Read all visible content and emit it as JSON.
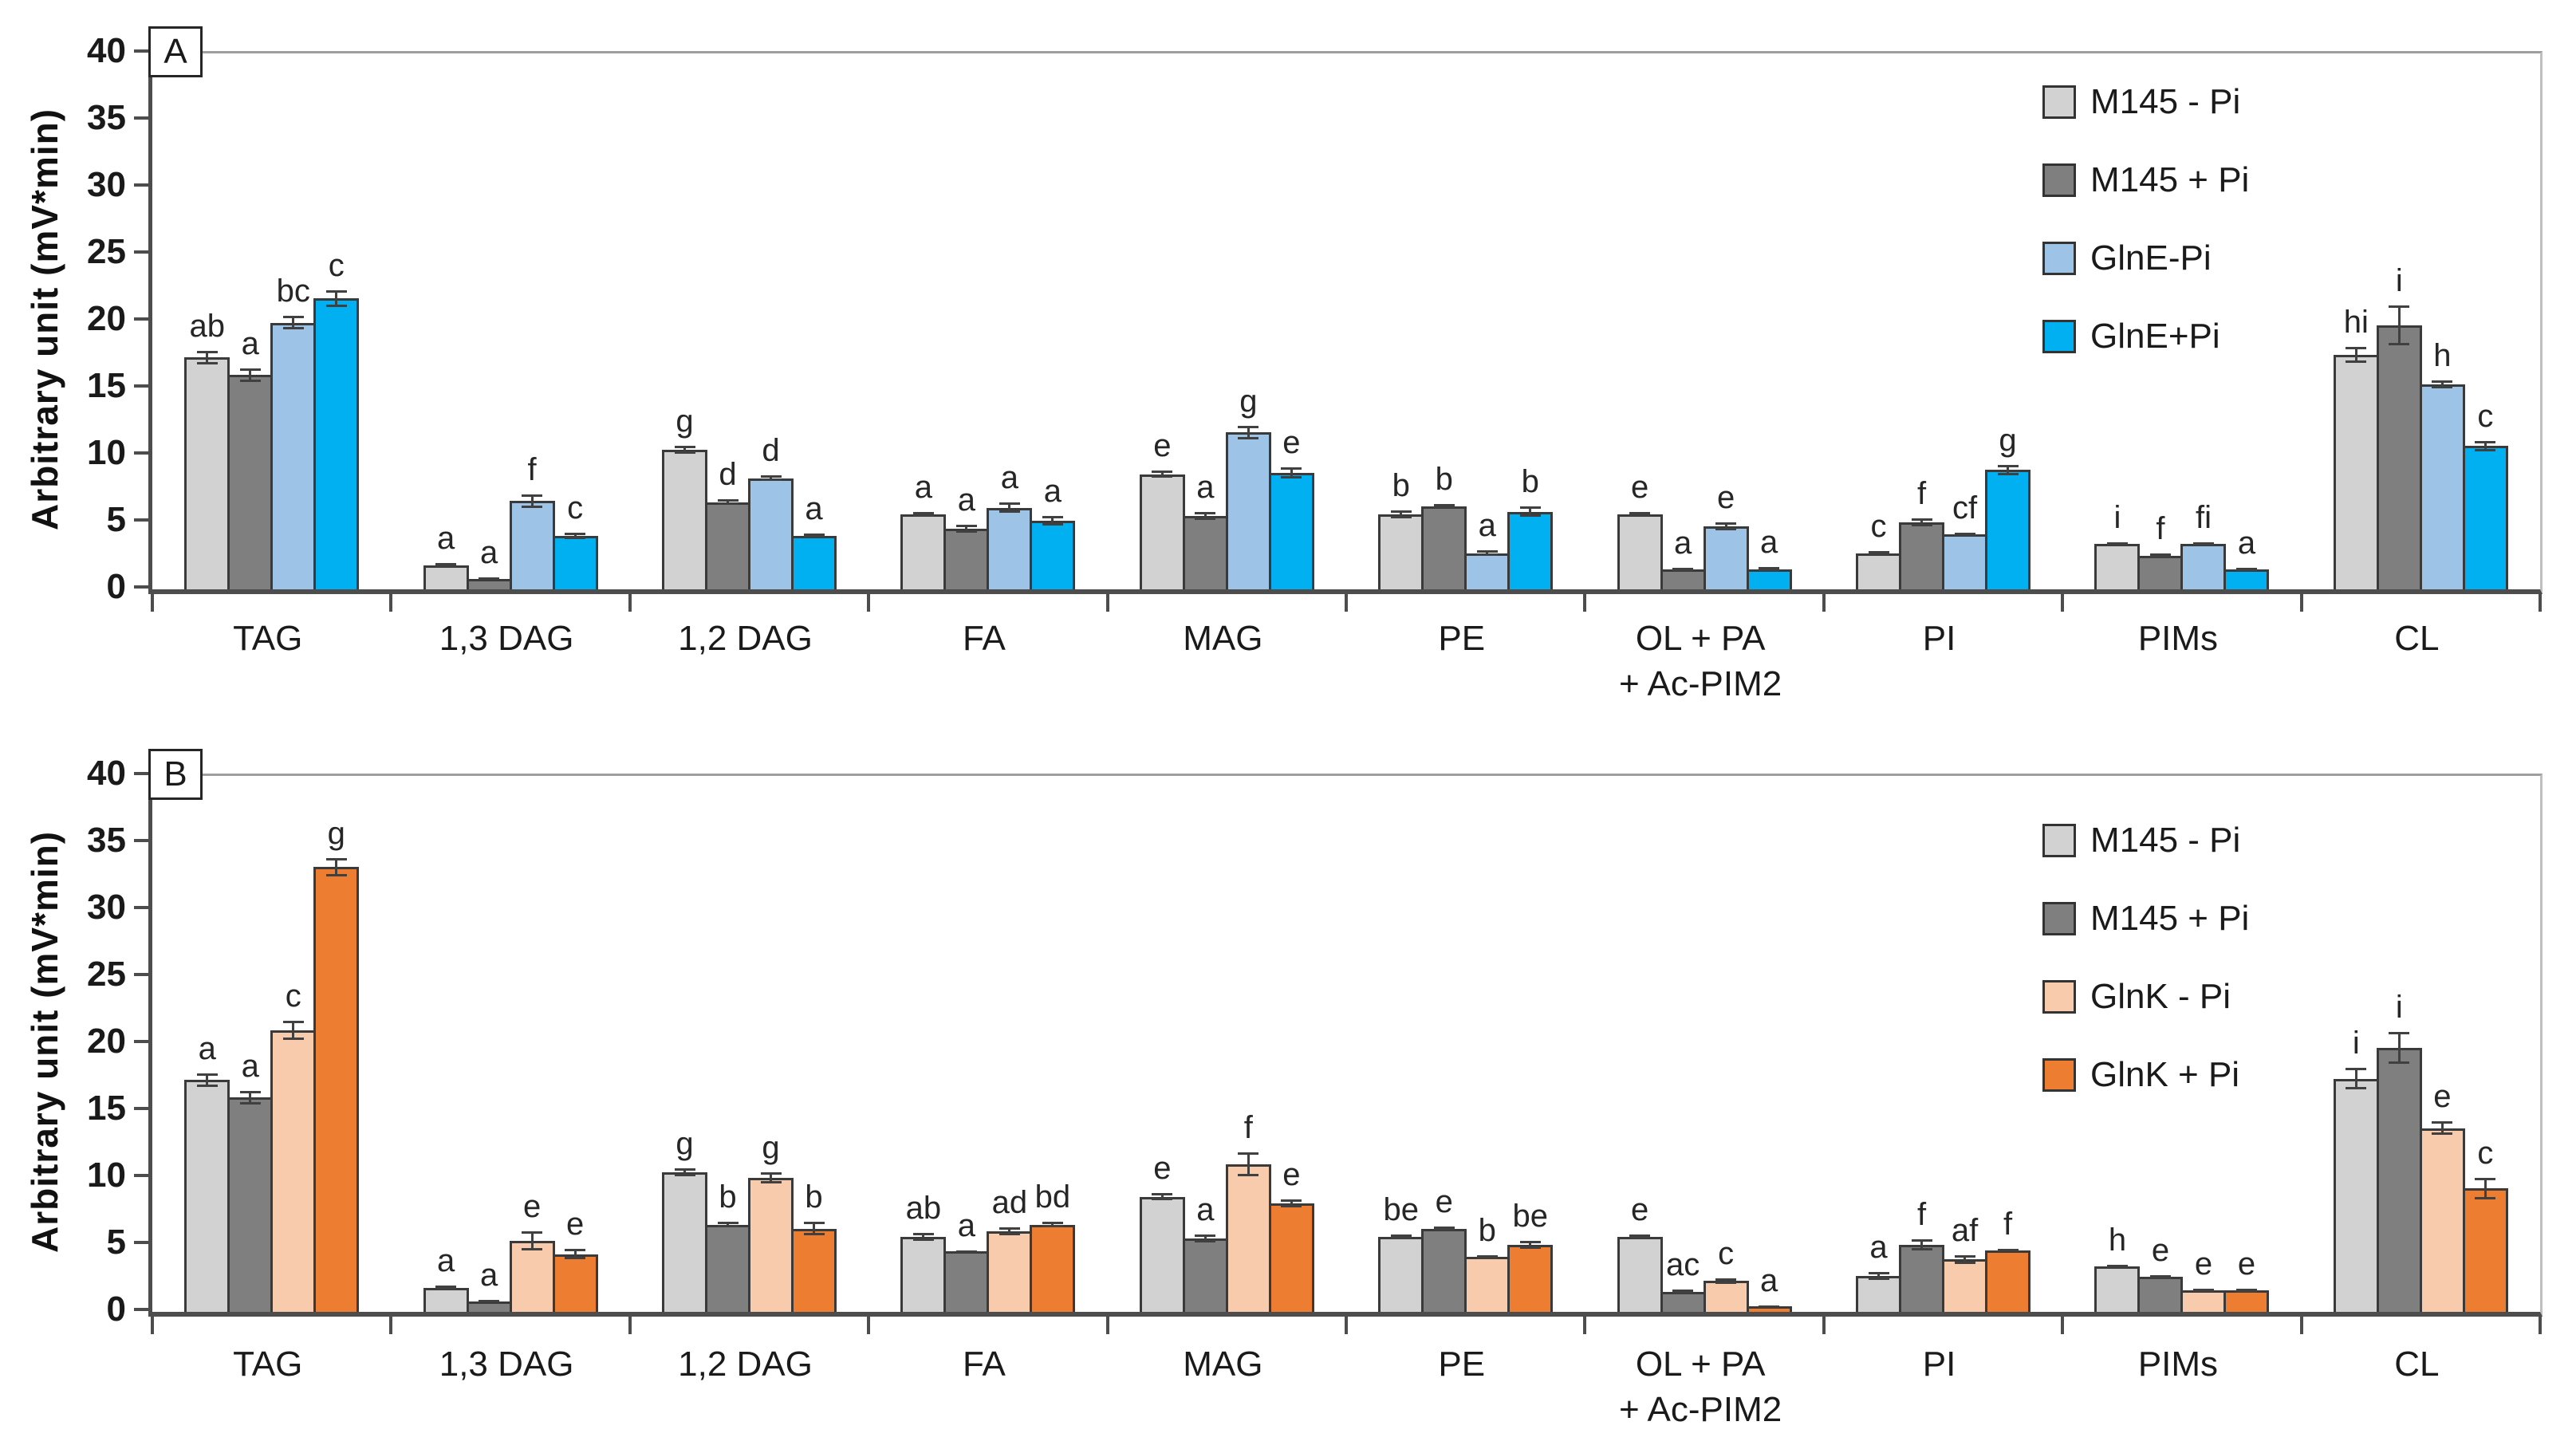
{
  "figure": {
    "y_axis_title": "Arbitrary unit (mV*min)",
    "y_ticks": [
      0,
      5,
      10,
      15,
      20,
      25,
      30,
      35,
      40
    ],
    "y_max": 40,
    "grid": false,
    "background_color": "#ffffff",
    "axis_color": "#4d4d4d",
    "error_bar_color": "#404040",
    "letter_color": "#262626"
  },
  "chart_data": [
    {
      "type": "bar",
      "panel_label": "A",
      "title": "",
      "xlabel": "",
      "ylabel": "Arbitrary unit (mV*min)",
      "ylim": [
        0,
        40
      ],
      "legend_position": "upper-right-inside",
      "categories": [
        "TAG",
        "1,3 DAG",
        "1,2 DAG",
        "FA",
        "MAG",
        "PE",
        "OL + PA\n+ Ac-PIM2",
        "PI",
        "PIMs",
        "CL"
      ],
      "series": [
        {
          "name": "M145 - Pi",
          "color": "#d2d2d2",
          "values": [
            17.3,
            1.8,
            10.4,
            5.6,
            8.6,
            5.6,
            5.6,
            2.7,
            3.4,
            17.5
          ],
          "errors": [
            0.5,
            0.15,
            0.3,
            0.2,
            0.25,
            0.3,
            0.15,
            0.15,
            0.1,
            0.6
          ],
          "letters": [
            "ab",
            "a",
            "g",
            "a",
            "e",
            "b",
            "e",
            "c",
            "i",
            "hi"
          ]
        },
        {
          "name": "M145 + Pi",
          "color": "#7f7f7f",
          "values": [
            16.0,
            0.8,
            6.5,
            4.5,
            5.5,
            6.2,
            1.5,
            5.0,
            2.5,
            19.7
          ],
          "errors": [
            0.5,
            0.1,
            0.2,
            0.3,
            0.3,
            0.15,
            0.1,
            0.3,
            0.2,
            1.5
          ],
          "letters": [
            "a",
            "a",
            "d",
            "a",
            "a",
            "b",
            "a",
            "f",
            "f",
            "i"
          ]
        },
        {
          "name": "GlnE-Pi",
          "color": "#9dc3e6",
          "values": [
            19.9,
            6.6,
            8.3,
            6.1,
            11.7,
            2.7,
            4.7,
            4.1,
            3.4,
            15.3
          ],
          "errors": [
            0.5,
            0.5,
            0.2,
            0.4,
            0.5,
            0.2,
            0.3,
            0.1,
            0.1,
            0.3
          ],
          "letters": [
            "bc",
            "f",
            "d",
            "a",
            "g",
            "a",
            "e",
            "cf",
            "fi",
            "h"
          ]
        },
        {
          "name": "GlnE+Pi",
          "color": "#00b0f0",
          "values": [
            21.7,
            4.0,
            4.0,
            5.1,
            8.7,
            5.8,
            1.5,
            8.9,
            1.5,
            10.7
          ],
          "errors": [
            0.6,
            0.25,
            0.15,
            0.35,
            0.4,
            0.4,
            0.15,
            0.4,
            0.1,
            0.4
          ],
          "letters": [
            "c",
            "c",
            "a",
            "a",
            "e",
            "b",
            "a",
            "g",
            "a",
            "c"
          ]
        }
      ]
    },
    {
      "type": "bar",
      "panel_label": "B",
      "title": "",
      "xlabel": "",
      "ylabel": "Arbitrary unit (mV*min)",
      "ylim": [
        0,
        40
      ],
      "legend_position": "upper-right-inside",
      "categories": [
        "TAG",
        "1,3 DAG",
        "1,2 DAG",
        "FA",
        "MAG",
        "PE",
        "OL + PA\n+ Ac-PIM2",
        "PI",
        "PIMs",
        "CL"
      ],
      "series": [
        {
          "name": "M145 - Pi",
          "color": "#d2d2d2",
          "values": [
            17.3,
            1.8,
            10.4,
            5.6,
            8.6,
            5.6,
            5.6,
            2.7,
            3.4,
            17.4
          ],
          "errors": [
            0.5,
            0.15,
            0.3,
            0.3,
            0.25,
            0.2,
            0.15,
            0.3,
            0.1,
            0.8
          ],
          "letters": [
            "a",
            "a",
            "g",
            "ab",
            "e",
            "be",
            "e",
            "a",
            "h",
            "i"
          ]
        },
        {
          "name": "M145 + Pi",
          "color": "#7f7f7f",
          "values": [
            16.0,
            0.8,
            6.5,
            4.5,
            5.5,
            6.2,
            1.5,
            5.0,
            2.6,
            19.7
          ],
          "errors": [
            0.5,
            0.1,
            0.2,
            0.1,
            0.3,
            0.15,
            0.15,
            0.4,
            0.15,
            1.2
          ],
          "letters": [
            "a",
            "a",
            "b",
            "a",
            "a",
            "e",
            "ac",
            "f",
            "e",
            "i"
          ]
        },
        {
          "name": "GlnK - Pi",
          "color": "#f8cbad",
          "values": [
            21.0,
            5.3,
            10.0,
            6.0,
            11.0,
            4.1,
            2.3,
            3.9,
            1.6,
            13.7
          ],
          "errors": [
            0.7,
            0.7,
            0.4,
            0.3,
            0.9,
            0.15,
            0.2,
            0.3,
            0.1,
            0.5
          ],
          "letters": [
            "c",
            "e",
            "g",
            "ad",
            "f",
            "b",
            "c",
            "af",
            "e",
            "e"
          ]
        },
        {
          "name": "GlnK + Pi",
          "color": "#ed7d31",
          "values": [
            33.2,
            4.3,
            6.2,
            6.5,
            8.1,
            5.0,
            0.4,
            4.6,
            1.6,
            9.2
          ],
          "errors": [
            0.7,
            0.4,
            0.5,
            0.2,
            0.3,
            0.3,
            0.1,
            0.1,
            0.15,
            0.8
          ],
          "letters": [
            "g",
            "e",
            "b",
            "bd",
            "e",
            "be",
            "a",
            "f",
            "e",
            "c"
          ]
        }
      ]
    }
  ]
}
